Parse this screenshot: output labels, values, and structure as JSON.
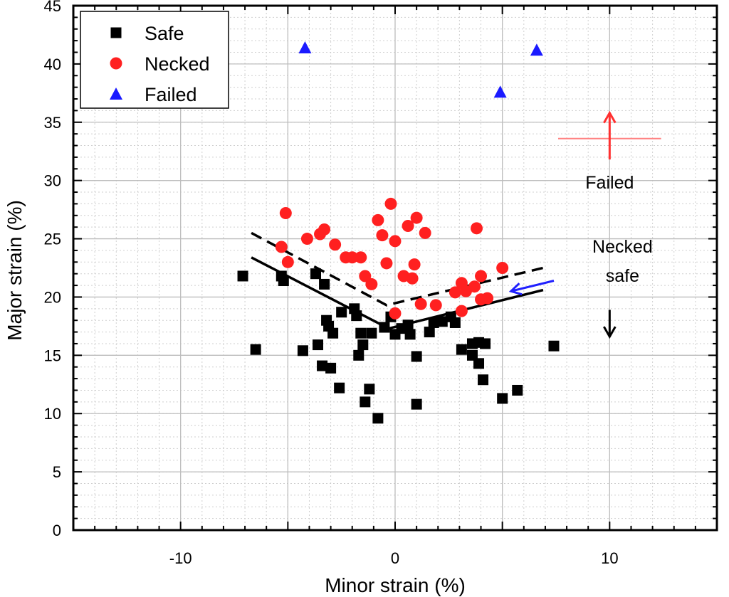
{
  "chart_data": {
    "type": "scatter",
    "xlabel": "Minor strain (%)",
    "ylabel": "Major strain (%)",
    "xlim": [
      -15,
      15
    ],
    "ylim": [
      0,
      45
    ],
    "x_ticks": [
      -10,
      0,
      10
    ],
    "y_ticks": [
      0,
      5,
      10,
      15,
      20,
      25,
      30,
      35,
      40,
      45
    ],
    "grid": true,
    "legend_position": "top-left",
    "series": [
      {
        "name": "Safe",
        "marker": "square",
        "color": "#000000",
        "points": [
          [
            -7.1,
            21.8
          ],
          [
            -6.5,
            15.5
          ],
          [
            -5.3,
            21.8
          ],
          [
            -5.2,
            21.4
          ],
          [
            -4.3,
            15.4
          ],
          [
            -3.7,
            22.0
          ],
          [
            -3.6,
            15.9
          ],
          [
            -3.4,
            14.1
          ],
          [
            -3.3,
            21.1
          ],
          [
            -3.2,
            18.0
          ],
          [
            -3.1,
            17.5
          ],
          [
            -3.0,
            13.9
          ],
          [
            -2.9,
            16.9
          ],
          [
            -2.6,
            12.2
          ],
          [
            -2.5,
            18.7
          ],
          [
            -1.9,
            19.0
          ],
          [
            -1.8,
            18.4
          ],
          [
            -1.7,
            15.0
          ],
          [
            -1.6,
            16.9
          ],
          [
            -1.5,
            15.9
          ],
          [
            -1.4,
            11.0
          ],
          [
            -1.2,
            12.1
          ],
          [
            -1.1,
            16.9
          ],
          [
            -0.8,
            9.6
          ],
          [
            -0.5,
            17.4
          ],
          [
            -0.2,
            18.3
          ],
          [
            0.0,
            16.8
          ],
          [
            0.3,
            17.3
          ],
          [
            0.6,
            17.6
          ],
          [
            0.7,
            16.8
          ],
          [
            1.0,
            14.9
          ],
          [
            1.0,
            10.8
          ],
          [
            1.6,
            17.0
          ],
          [
            1.8,
            17.8
          ],
          [
            2.2,
            17.9
          ],
          [
            2.6,
            18.3
          ],
          [
            2.8,
            17.8
          ],
          [
            3.1,
            15.5
          ],
          [
            3.6,
            15.0
          ],
          [
            3.6,
            16.0
          ],
          [
            3.9,
            14.3
          ],
          [
            3.9,
            16.1
          ],
          [
            4.1,
            12.9
          ],
          [
            4.2,
            16.0
          ],
          [
            5.0,
            11.3
          ],
          [
            5.7,
            12.0
          ],
          [
            7.4,
            15.8
          ]
        ]
      },
      {
        "name": "Necked",
        "marker": "circle",
        "color": "#ff2020",
        "points": [
          [
            -5.3,
            24.3
          ],
          [
            -5.1,
            27.2
          ],
          [
            -5.0,
            23.0
          ],
          [
            -4.1,
            25.0
          ],
          [
            -3.5,
            25.4
          ],
          [
            -3.3,
            25.8
          ],
          [
            -2.8,
            24.5
          ],
          [
            -2.3,
            23.4
          ],
          [
            -2.0,
            23.4
          ],
          [
            -1.6,
            23.4
          ],
          [
            -1.4,
            21.8
          ],
          [
            -1.1,
            21.1
          ],
          [
            -0.8,
            26.6
          ],
          [
            -0.6,
            25.3
          ],
          [
            -0.4,
            22.9
          ],
          [
            -0.2,
            28.0
          ],
          [
            0.0,
            24.8
          ],
          [
            0.0,
            18.6
          ],
          [
            0.4,
            21.8
          ],
          [
            0.6,
            26.1
          ],
          [
            0.8,
            21.6
          ],
          [
            0.9,
            22.8
          ],
          [
            1.0,
            26.8
          ],
          [
            1.2,
            19.4
          ],
          [
            1.4,
            25.5
          ],
          [
            1.9,
            19.3
          ],
          [
            2.8,
            20.4
          ],
          [
            3.1,
            21.2
          ],
          [
            3.1,
            18.8
          ],
          [
            3.3,
            20.5
          ],
          [
            3.7,
            20.9
          ],
          [
            3.8,
            25.9
          ],
          [
            4.0,
            21.8
          ],
          [
            4.0,
            19.8
          ],
          [
            4.3,
            19.9
          ],
          [
            5.0,
            22.5
          ]
        ]
      },
      {
        "name": "Failed",
        "marker": "triangle",
        "color": "#1a1aff",
        "points": [
          [
            -4.2,
            41.4
          ],
          [
            4.9,
            37.6
          ],
          [
            6.6,
            41.2
          ]
        ]
      }
    ],
    "lines": [
      {
        "style": "solid",
        "color": "#000000",
        "points": [
          [
            -6.7,
            23.4
          ],
          [
            -0.3,
            17.3
          ],
          [
            6.9,
            20.6
          ]
        ]
      },
      {
        "style": "dashed",
        "color": "#000000",
        "points": [
          [
            -6.7,
            25.5
          ],
          [
            -0.4,
            19.3
          ],
          [
            6.9,
            22.5
          ]
        ]
      }
    ],
    "annotations": [
      {
        "text": "Failed",
        "x": 10.0,
        "y": 29.3
      },
      {
        "text": "Necked",
        "x": 10.6,
        "y": 23.8
      },
      {
        "text": "safe",
        "x": 10.6,
        "y": 21.3
      }
    ],
    "arrows": [
      {
        "color": "#ff3030",
        "from": [
          10.0,
          31.8
        ],
        "to": [
          10.0,
          35.8
        ]
      },
      {
        "color": "#000000",
        "from": [
          10.0,
          18.9
        ],
        "to": [
          10.0,
          16.6
        ]
      },
      {
        "color": "#2020ff",
        "from": [
          7.4,
          21.4
        ],
        "to": [
          5.4,
          20.5
        ]
      }
    ],
    "reference_lines": [
      {
        "color": "#ff8080",
        "y": 33.6,
        "x_range": [
          7.6,
          12.4
        ]
      }
    ]
  }
}
